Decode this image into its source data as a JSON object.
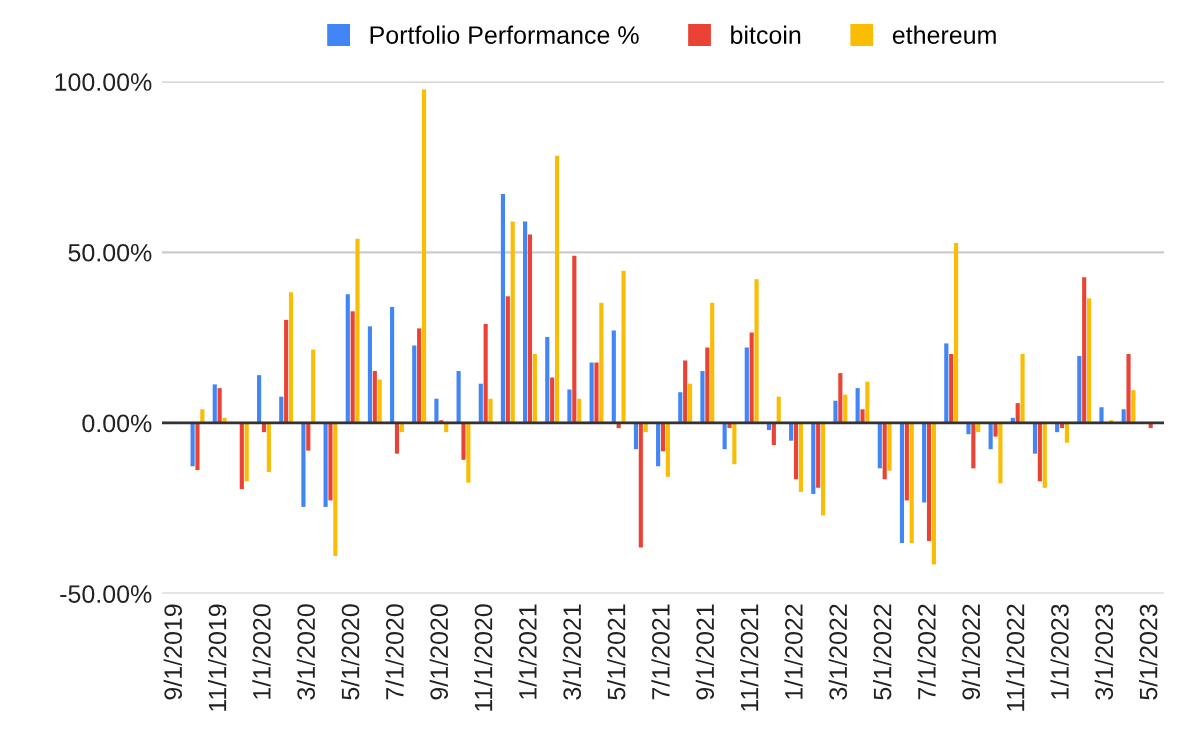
{
  "chart_data": {
    "type": "bar",
    "categories": [
      "9/1/2019",
      null,
      "11/1/2019",
      null,
      "1/1/2020",
      null,
      "3/1/2020",
      null,
      "5/1/2020",
      null,
      "7/1/2020",
      null,
      "9/1/2020",
      null,
      "11/1/2020",
      null,
      "1/1/2021",
      null,
      "3/1/2021",
      null,
      "5/1/2021",
      null,
      "7/1/2021",
      null,
      "9/1/2021",
      null,
      "11/1/2021",
      null,
      "1/1/2022",
      null,
      "3/1/2022",
      null,
      "5/1/2022",
      null,
      "7/1/2022",
      null,
      "9/1/2022",
      null,
      "11/1/2022",
      null,
      "1/1/2023",
      null,
      "3/1/2023",
      null,
      "5/1/2023"
    ],
    "series": [
      {
        "name": "Portfolio Performance %",
        "color": "#4285f4",
        "values": [
          null,
          -12.7,
          11.3,
          null,
          14.0,
          7.7,
          -24.6,
          -24.6,
          37.7,
          28.3,
          34.0,
          22.7,
          7.1,
          15.2,
          11.5,
          67.1,
          59.0,
          25.2,
          9.8,
          17.7,
          27.1,
          -7.7,
          -12.7,
          9.0,
          15.2,
          -7.7,
          22.1,
          -2.1,
          -5.2,
          -20.8,
          6.5,
          10.2,
          -13.3,
          -35.2,
          -23.3,
          23.3,
          -3.3,
          -7.7,
          1.5,
          -9.0,
          -2.7,
          19.6,
          4.6,
          4.0,
          0
        ]
      },
      {
        "name": "bitcoin",
        "color": "#ea4335",
        "values": [
          null,
          -13.8,
          10.2,
          -19.4,
          -2.7,
          30.2,
          -8.1,
          -22.7,
          32.7,
          15.2,
          -9.0,
          27.7,
          0.8,
          -10.8,
          29.0,
          37.1,
          55.2,
          13.3,
          49.0,
          17.7,
          -1.5,
          -36.5,
          -8.3,
          18.3,
          22.1,
          -1.5,
          26.5,
          -6.5,
          -16.5,
          -19.0,
          14.6,
          4.0,
          -16.5,
          -22.7,
          -34.6,
          20.2,
          -13.3,
          -4.0,
          5.8,
          -17.1,
          -1.5,
          42.7,
          0,
          20.2,
          -1.5
        ]
      },
      {
        "name": "ethereum",
        "color": "#fbbc04",
        "values": [
          null,
          4.0,
          1.5,
          -17.1,
          -14.4,
          38.3,
          21.5,
          -39.0,
          54.0,
          12.7,
          -2.7,
          97.7,
          -2.7,
          -17.5,
          7.1,
          59.0,
          20.2,
          78.3,
          7.1,
          35.2,
          44.6,
          -2.7,
          -15.8,
          11.5,
          35.2,
          -12.1,
          42.1,
          7.7,
          -20.2,
          -27.1,
          8.3,
          12.1,
          -14.0,
          -35.2,
          -41.5,
          52.7,
          -2.7,
          -17.7,
          20.2,
          -19.0,
          -5.8,
          36.5,
          0.8,
          9.6,
          null
        ]
      }
    ],
    "ylim": [
      -50,
      100
    ],
    "yticks": [
      {
        "value": -50,
        "label": "-50.00%"
      },
      {
        "value": 0,
        "label": "0.00%"
      },
      {
        "value": 50,
        "label": "50.00%"
      },
      {
        "value": 100,
        "label": "100.00%"
      }
    ],
    "grid": "y",
    "legend": "top"
  }
}
